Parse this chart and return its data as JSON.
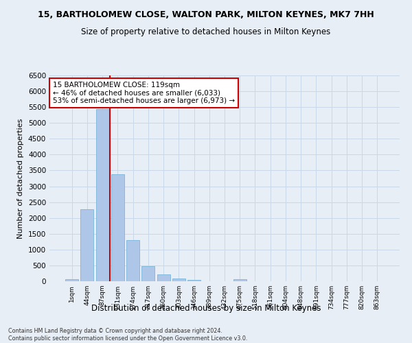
{
  "title": "15, BARTHOLOMEW CLOSE, WALTON PARK, MILTON KEYNES, MK7 7HH",
  "subtitle": "Size of property relative to detached houses in Milton Keynes",
  "xlabel": "Distribution of detached houses by size in Milton Keynes",
  "ylabel": "Number of detached properties",
  "footer1": "Contains HM Land Registry data © Crown copyright and database right 2024.",
  "footer2": "Contains public sector information licensed under the Open Government Licence v3.0.",
  "bar_labels": [
    "1sqm",
    "44sqm",
    "87sqm",
    "131sqm",
    "174sqm",
    "217sqm",
    "260sqm",
    "303sqm",
    "346sqm",
    "389sqm",
    "432sqm",
    "475sqm",
    "518sqm",
    "561sqm",
    "604sqm",
    "648sqm",
    "691sqm",
    "734sqm",
    "777sqm",
    "820sqm",
    "863sqm"
  ],
  "bar_values": [
    60,
    2280,
    5430,
    3380,
    1310,
    475,
    210,
    95,
    50,
    0,
    0,
    55,
    0,
    0,
    0,
    0,
    0,
    0,
    0,
    0,
    0
  ],
  "bar_color": "#aec6e8",
  "bar_edge_color": "#6baed6",
  "grid_color": "#c8d8e8",
  "bg_color": "#e8eef6",
  "vline_color": "#cc0000",
  "vline_x_index": 2.5,
  "annotation_text": "15 BARTHOLOMEW CLOSE: 119sqm\n← 46% of detached houses are smaller (6,033)\n53% of semi-detached houses are larger (6,973) →",
  "annotation_box_color": "#ffffff",
  "annotation_box_edge": "#cc0000",
  "ylim": [
    0,
    6500
  ],
  "yticks": [
    0,
    500,
    1000,
    1500,
    2000,
    2500,
    3000,
    3500,
    4000,
    4500,
    5000,
    5500,
    6000,
    6500
  ]
}
